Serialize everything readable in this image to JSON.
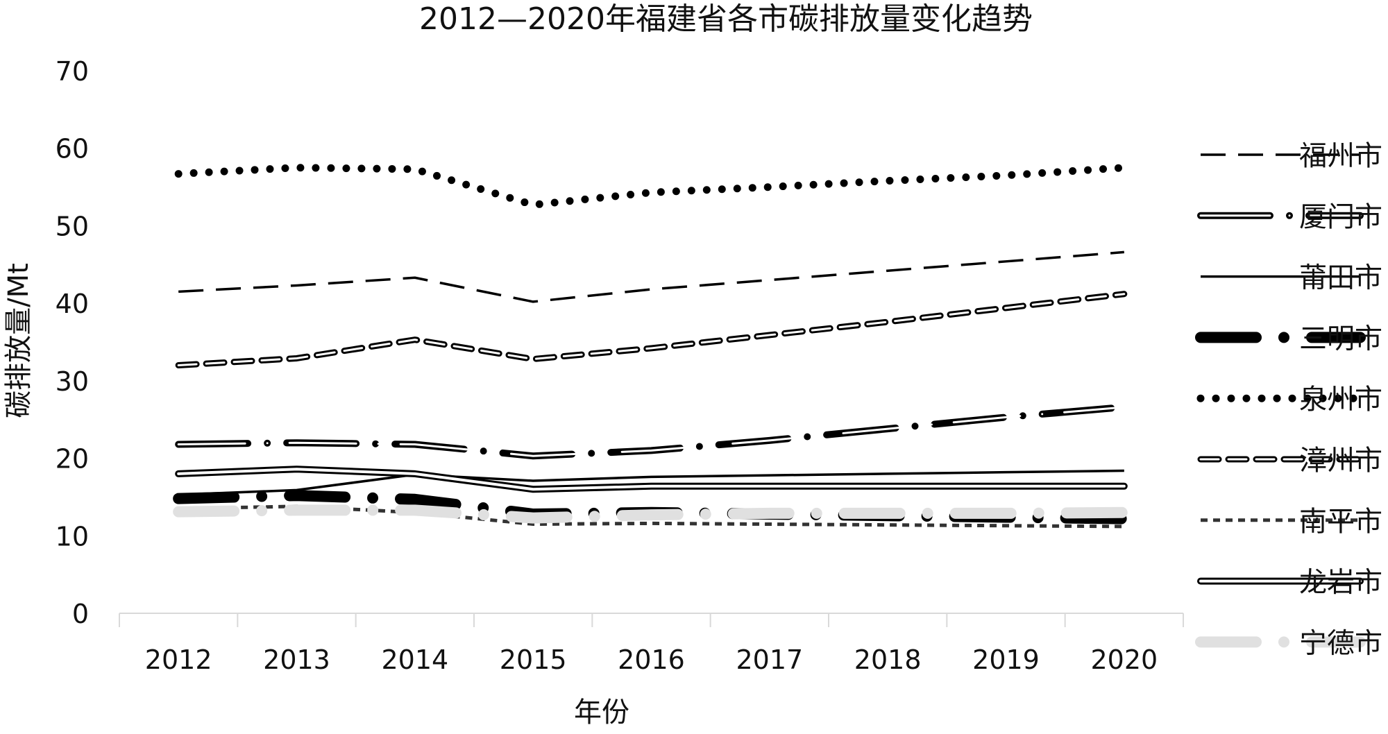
{
  "chart_data": {
    "type": "line",
    "title": "2012—2020年福建省各市碳排放量变化趋势",
    "xlabel": "年份",
    "ylabel": "碳排放量/Mt",
    "ylim": [
      0,
      70
    ],
    "yticks": [
      "0",
      "10",
      "20",
      "30",
      "40",
      "50",
      "60",
      "70"
    ],
    "categories": [
      "2012",
      "2013",
      "2014",
      "2015",
      "2016",
      "2017",
      "2018",
      "2019",
      "2020"
    ],
    "grid": false,
    "legend_position": "right",
    "series": [
      {
        "name": "福州市",
        "style": "long-dash",
        "color": "#000000",
        "values": [
          41.5,
          42.3,
          43.3,
          40.2,
          41.8,
          43.0,
          44.2,
          45.4,
          46.6
        ]
      },
      {
        "name": "厦门市",
        "style": "double-dash-dot",
        "color": "#000000",
        "values": [
          21.8,
          22.0,
          21.8,
          20.3,
          21.0,
          22.3,
          23.8,
          25.3,
          26.6
        ]
      },
      {
        "name": "莆田市",
        "style": "solid",
        "color": "#000000",
        "values": [
          15.3,
          15.9,
          17.9,
          17.1,
          17.6,
          17.8,
          18.0,
          18.2,
          18.4
        ]
      },
      {
        "name": "三明市",
        "style": "thick-dash-dot",
        "color": "#000000",
        "values": [
          14.8,
          15.2,
          14.7,
          12.8,
          13.0,
          12.8,
          12.6,
          12.4,
          12.2
        ]
      },
      {
        "name": "泉州市",
        "style": "dotted",
        "color": "#000000",
        "values": [
          56.7,
          57.5,
          57.3,
          52.7,
          54.3,
          55.0,
          55.8,
          56.5,
          57.5
        ]
      },
      {
        "name": "漳州市",
        "style": "double-dash",
        "color": "#000000",
        "values": [
          32.0,
          32.9,
          35.3,
          32.8,
          34.2,
          35.9,
          37.6,
          39.4,
          41.2
        ]
      },
      {
        "name": "南平市",
        "style": "short-dash",
        "color": "#333333",
        "values": [
          13.5,
          13.8,
          13.0,
          11.5,
          11.6,
          11.5,
          11.4,
          11.3,
          11.2
        ]
      },
      {
        "name": "龙岩市",
        "style": "double-solid",
        "color": "#000000",
        "values": [
          18.0,
          18.6,
          18.0,
          16.0,
          16.4,
          16.4,
          16.4,
          16.4,
          16.4
        ]
      },
      {
        "name": "宁德市",
        "style": "thick-dash-dot",
        "color": "#e0e0e0",
        "values": [
          13.1,
          13.3,
          13.3,
          12.3,
          12.7,
          12.9,
          12.9,
          12.9,
          13.0
        ]
      }
    ]
  }
}
